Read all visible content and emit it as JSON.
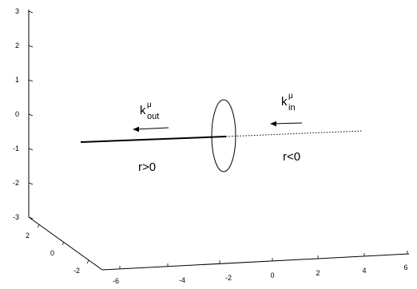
{
  "axes": {
    "z_ticks": [
      "3",
      "2",
      "1",
      "0",
      "-1",
      "-2",
      "-3"
    ],
    "y_ticks": [
      "2",
      "0",
      "-2"
    ],
    "x_ticks": [
      "-6",
      "-4",
      "-2",
      "0",
      "2",
      "4",
      "6"
    ]
  },
  "labels": {
    "k_out": {
      "base": "k",
      "sup": "μ",
      "sub": "out"
    },
    "k_in": {
      "base": "k",
      "sup": "μ",
      "sub": "in"
    },
    "region_positive": "r>0",
    "region_negative": "r<0"
  },
  "colors": {
    "ink": "#000000",
    "background": "#ffffff"
  }
}
